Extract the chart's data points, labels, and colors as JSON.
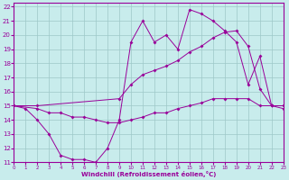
{
  "xlabel": "Windchill (Refroidissement éolien,°C)",
  "bg_color": "#c8ecec",
  "grid_color": "#9dc8c8",
  "line_color": "#990099",
  "xlim": [
    0,
    23
  ],
  "ylim": [
    11,
    22
  ],
  "xticks": [
    0,
    1,
    2,
    3,
    4,
    5,
    6,
    7,
    8,
    9,
    10,
    11,
    12,
    13,
    14,
    15,
    16,
    17,
    18,
    19,
    20,
    21,
    22,
    23
  ],
  "yticks": [
    11,
    12,
    13,
    14,
    15,
    16,
    17,
    18,
    19,
    20,
    21,
    22
  ],
  "line1_x": [
    0,
    1,
    2,
    3,
    4,
    5,
    6,
    7,
    8,
    9,
    10,
    11,
    12,
    13,
    14,
    15,
    16,
    17,
    18,
    19,
    20,
    21,
    22,
    23
  ],
  "line1_y": [
    15.0,
    14.8,
    14.0,
    13.0,
    11.5,
    11.2,
    11.2,
    11.0,
    12.0,
    14.0,
    19.5,
    21.0,
    19.5,
    20.0,
    19.0,
    21.8,
    21.5,
    21.0,
    20.3,
    19.5,
    16.5,
    18.5,
    15.0,
    14.8
  ],
  "line2_x": [
    0,
    2,
    3,
    4,
    5,
    6,
    7,
    8,
    9,
    10,
    11,
    12,
    13,
    14,
    15,
    16,
    17,
    18,
    19,
    20,
    21,
    22,
    23
  ],
  "line2_y": [
    15.0,
    14.8,
    14.5,
    14.5,
    14.2,
    14.2,
    14.0,
    13.8,
    13.8,
    14.0,
    14.2,
    14.5,
    14.5,
    14.8,
    15.0,
    15.2,
    15.5,
    15.5,
    15.5,
    15.5,
    15.0,
    15.0,
    15.0
  ],
  "line3_x": [
    0,
    2,
    9,
    10,
    11,
    12,
    13,
    14,
    15,
    16,
    17,
    18,
    19,
    20,
    21,
    22,
    23
  ],
  "line3_y": [
    15.0,
    15.0,
    15.5,
    16.5,
    17.2,
    17.5,
    17.8,
    18.2,
    18.8,
    19.2,
    19.8,
    20.2,
    20.3,
    19.2,
    16.2,
    15.0,
    15.0
  ]
}
